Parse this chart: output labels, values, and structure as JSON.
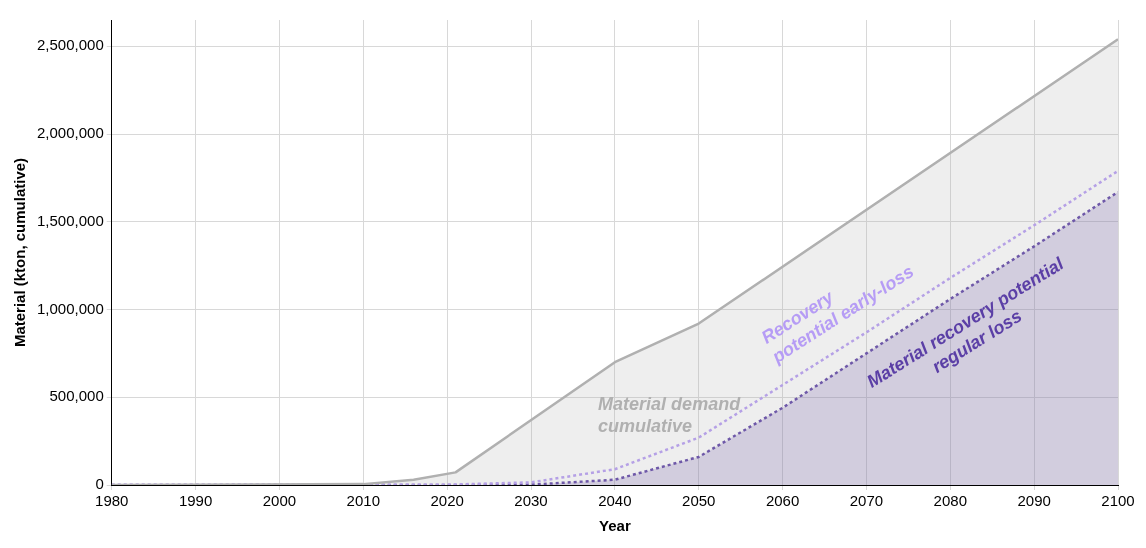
{
  "chart_data": {
    "type": "area",
    "xlabel": "Year",
    "ylabel": "Material (kton, cumulative)",
    "xlim": [
      1980,
      2100
    ],
    "xticks": [
      1980,
      1990,
      2000,
      2010,
      2020,
      2030,
      2040,
      2050,
      2060,
      2070,
      2080,
      2090,
      2100
    ],
    "ylim": [
      0,
      2650000
    ],
    "yticks": [
      {
        "value": 0,
        "label": "0"
      },
      {
        "value": 500000,
        "label": "500,000"
      },
      {
        "value": 1000000,
        "label": "1,000,000"
      },
      {
        "value": 1500000,
        "label": "1,500,000"
      },
      {
        "value": 2000000,
        "label": "2,000,000"
      },
      {
        "value": 2500000,
        "label": "2,500,000"
      }
    ],
    "grid": true,
    "legend": false,
    "marker": "none",
    "series": [
      {
        "name": "Material demand\ncumulative",
        "color": "#b0b0b0",
        "line_style": "solid",
        "x": [
          1980,
          2010,
          2016,
          2021,
          2040,
          2050,
          2100
        ],
        "values": [
          0,
          5000,
          30000,
          72000,
          700000,
          920000,
          2540000
        ]
      },
      {
        "name": "Recovery\npotential early-loss",
        "type": "line",
        "color": "#b69cf5",
        "line_style": "dotted",
        "x": [
          1980,
          2020,
          2030,
          2040,
          2050,
          2060,
          2070,
          2080,
          2090,
          2100
        ],
        "values": [
          0,
          2000,
          15000,
          90000,
          270000,
          570000,
          870000,
          1180000,
          1480000,
          1790000
        ]
      },
      {
        "name": "Material recovery potential\nregular loss",
        "color": "#5b3fa6",
        "line_style": "dotted",
        "x": [
          1980,
          2020,
          2030,
          2040,
          2050,
          2060,
          2070,
          2080,
          2090,
          2100
        ],
        "values": [
          0,
          0,
          2000,
          30000,
          160000,
          440000,
          750000,
          1060000,
          1360000,
          1670000
        ]
      }
    ]
  }
}
